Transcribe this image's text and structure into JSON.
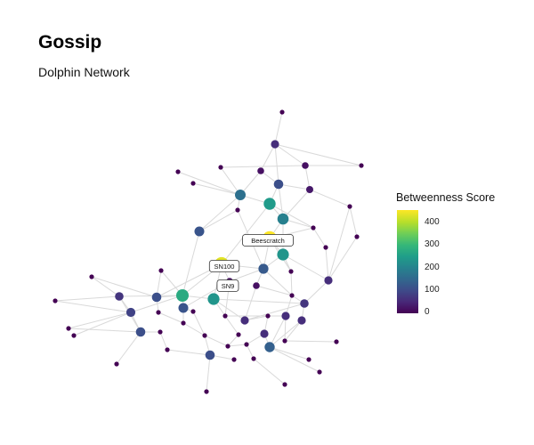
{
  "chart_data": {
    "type": "network",
    "title": "Gossip",
    "subtitle": "Dolphin Network",
    "legend": {
      "title": "Betweenness Score",
      "ticks": [
        0,
        100,
        200,
        300,
        400
      ],
      "range": [
        0,
        460
      ],
      "placement": "right",
      "colors": [
        "#440154",
        "#482878",
        "#3e4a89",
        "#31688e",
        "#26828e",
        "#1f9e89",
        "#35b779",
        "#6ece58",
        "#b5de2b",
        "#fde725"
      ]
    },
    "labels": [
      "Beescratch",
      "SN100",
      "SN9"
    ],
    "edge_color": "#d9d9d9"
  }
}
